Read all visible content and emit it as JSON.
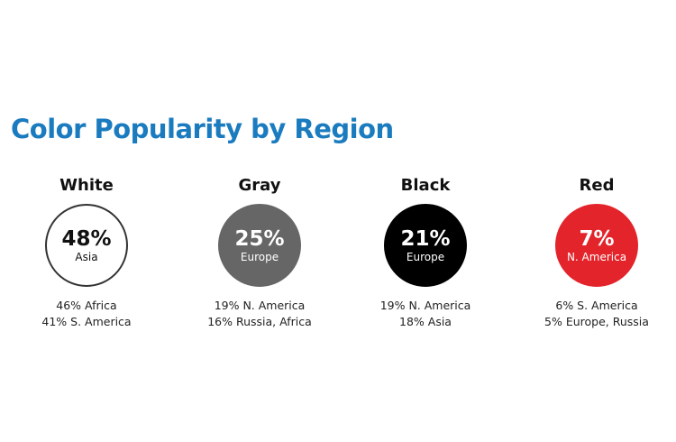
{
  "title": "Color Popularity by Region",
  "colors": [
    {
      "name": "White",
      "fill": "#ffffff",
      "border": "#333333",
      "text_color": "#111111",
      "top_share": "48%",
      "top_region": "Asia",
      "others": [
        "46% Africa",
        "41% S. America"
      ]
    },
    {
      "name": "Gray",
      "fill": "#666666",
      "border": "#666666",
      "text_color": "#ffffff",
      "top_share": "25%",
      "top_region": "Europe",
      "others": [
        "19% N. America",
        "16% Russia, Africa"
      ]
    },
    {
      "name": "Black",
      "fill": "#000000",
      "border": "#000000",
      "text_color": "#ffffff",
      "top_share": "21%",
      "top_region": "Europe",
      "others": [
        "19% N. America",
        "18% Asia"
      ]
    },
    {
      "name": "Red",
      "fill": "#e3242b",
      "border": "#e3242b",
      "text_color": "#ffffff",
      "top_share": "7%",
      "top_region": "N. America",
      "others": [
        "6% S. America",
        "5% Europe, Russia"
      ]
    }
  ]
}
